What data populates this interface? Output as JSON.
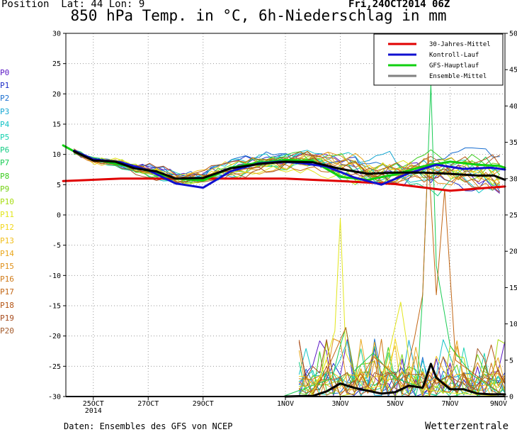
{
  "header": {
    "position": "Position  Lat: 44 Lon: 9",
    "date": "Fri,24OCT2014 06Z",
    "title": "850 hPa Temp. in °C, 6h-Niederschlag in mm"
  },
  "footer": {
    "source": "Daten: Ensembles des GFS von NCEP",
    "brand": "Wetterzentrale"
  },
  "chart_data": {
    "type": "line",
    "title": "850 hPa Temp. in °C, 6h-Niederschlag in mm",
    "y_left": {
      "lim": [
        -30,
        30
      ],
      "ticks": [
        30,
        25,
        20,
        15,
        10,
        5,
        0,
        -5,
        -10,
        -15,
        -20,
        -25,
        -30
      ]
    },
    "y_right": {
      "lim": [
        0,
        50
      ],
      "ticks": [
        50,
        45,
        40,
        35,
        30,
        25,
        20,
        15,
        10,
        5,
        0
      ]
    },
    "x": {
      "range_days": [
        0,
        16
      ],
      "ticks": [
        {
          "day": 1,
          "label": "25OCT",
          "sub": "2014"
        },
        {
          "day": 3,
          "label": "27OCT",
          "sub": ""
        },
        {
          "day": 5,
          "label": "29OCT",
          "sub": ""
        },
        {
          "day": 8,
          "label": "1NOV",
          "sub": ""
        },
        {
          "day": 10,
          "label": "3NOV",
          "sub": ""
        },
        {
          "day": 12,
          "label": "5NOV",
          "sub": ""
        },
        {
          "day": 14,
          "label": "7NOV",
          "sub": ""
        },
        {
          "day": 16,
          "label": "9NOV",
          "sub": ""
        }
      ]
    },
    "grid": true,
    "legend_position": "top-right",
    "legend": [
      {
        "name": "30-Jahres-Mittel",
        "color": "#e00000"
      },
      {
        "name": "Kontroll-Lauf",
        "color": "#1010d0"
      },
      {
        "name": "GFS-Hauptlauf",
        "color": "#10d010"
      },
      {
        "name": "Ensemble-Mittel",
        "color": "#808080"
      }
    ],
    "members": [
      {
        "name": "P0",
        "color": "#5a17c4"
      },
      {
        "name": "P1",
        "color": "#1f2ec8"
      },
      {
        "name": "P2",
        "color": "#1a6fd0"
      },
      {
        "name": "P3",
        "color": "#16a7d2"
      },
      {
        "name": "P4",
        "color": "#15c3c6"
      },
      {
        "name": "P5",
        "color": "#17d2b0"
      },
      {
        "name": "P6",
        "color": "#16cc84"
      },
      {
        "name": "P7",
        "color": "#19cc54"
      },
      {
        "name": "P8",
        "color": "#3bcc1f"
      },
      {
        "name": "P9",
        "color": "#74d214"
      },
      {
        "name": "P10",
        "color": "#a8dc12"
      },
      {
        "name": "P11",
        "color": "#e2e61b"
      },
      {
        "name": "P12",
        "color": "#f2d71c"
      },
      {
        "name": "P13",
        "color": "#f1bf1d"
      },
      {
        "name": "P14",
        "color": "#e9a71c"
      },
      {
        "name": "P15",
        "color": "#e0911b"
      },
      {
        "name": "P16",
        "color": "#d07a18"
      },
      {
        "name": "P17",
        "color": "#c26716"
      },
      {
        "name": "P18",
        "color": "#b55514"
      },
      {
        "name": "P19",
        "color": "#a64a1c"
      },
      {
        "name": "P20",
        "color": "#a45a2a"
      }
    ],
    "climatology": {
      "name": "30-Jahres-Mittel",
      "color": "#e00000",
      "x": [
        -0.1,
        2,
        4,
        6,
        8,
        10,
        12,
        14,
        16
      ],
      "y": [
        5.6,
        6.0,
        6.0,
        6.0,
        6.0,
        5.6,
        5.1,
        4.0,
        4.7
      ]
    },
    "ensemble_mean": {
      "name": "Ensemble-Mittel",
      "color": "#000000",
      "x": [
        0.3,
        1.0,
        1.8,
        2.5,
        3.3,
        4.0,
        5.0,
        6.0,
        7.0,
        8.0,
        9.0,
        10.0,
        11.0,
        12.0,
        13.0,
        14.0,
        15.0,
        15.6,
        16.0
      ],
      "y": [
        10.5,
        9.0,
        8.8,
        7.7,
        7.2,
        6.0,
        6.1,
        7.7,
        8.4,
        8.8,
        8.7,
        7.6,
        6.8,
        7.0,
        7.0,
        6.8,
        6.5,
        6.5,
        5.8
      ]
    },
    "control_run": {
      "name": "Kontroll-Lauf",
      "color": "#1010d0",
      "x": [
        0.3,
        1.0,
        2.0,
        3.0,
        4.0,
        5.0,
        6.0,
        7.0,
        7.8,
        8.5,
        9.5,
        10.5,
        11.5,
        12.5,
        13.5,
        14.5,
        15.5,
        16.0
      ],
      "y": [
        10.6,
        9.2,
        8.7,
        7.4,
        5.2,
        4.5,
        7.2,
        8.5,
        8.8,
        8.6,
        8.0,
        6.2,
        5.0,
        6.9,
        8.3,
        7.6,
        7.8,
        7.5
      ]
    },
    "gfs_main": {
      "name": "GFS-Hauptlauf",
      "color": "#10d010",
      "x": [
        -0.1,
        0.5,
        1.0,
        2.0,
        3.0,
        4.0,
        5.0,
        6.0,
        7.0,
        8.0,
        9.0,
        10.0,
        11.0,
        12.0,
        13.0,
        14.0,
        15.0,
        15.8,
        16.0
      ],
      "y": [
        11.5,
        10.0,
        9.2,
        8.3,
        7.3,
        6.0,
        5.7,
        7.8,
        8.6,
        9.1,
        8.9,
        6.3,
        5.8,
        6.7,
        8.0,
        8.8,
        8.3,
        8.1,
        7.8
      ]
    },
    "precipitation": {
      "unit": "mm",
      "ensemble_mean": {
        "x": [
          8.0,
          9.0,
          9.5,
          10.0,
          10.5,
          11.0,
          11.5,
          12.0,
          12.5,
          13.0,
          13.3,
          13.5,
          14.0,
          14.5,
          15.0,
          15.5,
          16.0
        ],
        "y": [
          0.0,
          0.1,
          0.7,
          1.8,
          1.2,
          0.8,
          0.4,
          0.6,
          1.5,
          1.2,
          4.5,
          2.6,
          1.0,
          1.0,
          0.4,
          0.3,
          0.3
        ]
      },
      "peaks": [
        {
          "member": "P7",
          "x": [
            7.9,
            9.7,
            10.0,
            10.2,
            10.5,
            11.2,
            12.0,
            12.8,
            13.0,
            13.3,
            13.5,
            14.0,
            14.8,
            16.0
          ],
          "y": [
            0,
            2.5,
            7.0,
            9.5,
            3.5,
            6.0,
            2.5,
            1.5,
            14.0,
            43.0,
            18.0,
            7.0,
            3.0,
            0
          ]
        },
        {
          "member": "P11",
          "x": [
            8.9,
            9.4,
            9.8,
            10.0,
            10.2,
            10.5,
            10.9,
            11.5,
            12.2,
            12.4,
            12.6,
            13.0,
            14.0,
            16.0
          ],
          "y": [
            0,
            4.0,
            9.0,
            24.5,
            6.0,
            3.5,
            1.0,
            1.5,
            13.0,
            8.0,
            2.0,
            1.0,
            0.5,
            0
          ]
        },
        {
          "member": "P17",
          "x": [
            0.9,
            1.1,
            8.8,
            9.5,
            10.2,
            10.5,
            10.7,
            11.2,
            12.0,
            12.3,
            12.7,
            13.0,
            13.2,
            13.5,
            13.8,
            14.2,
            16.0
          ],
          "y": [
            0,
            0,
            0,
            3.5,
            9.5,
            3.0,
            2.0,
            5.5,
            3.0,
            1.5,
            8.0,
            14.0,
            33.5,
            14.0,
            28.5,
            5.0,
            0
          ]
        }
      ]
    }
  }
}
